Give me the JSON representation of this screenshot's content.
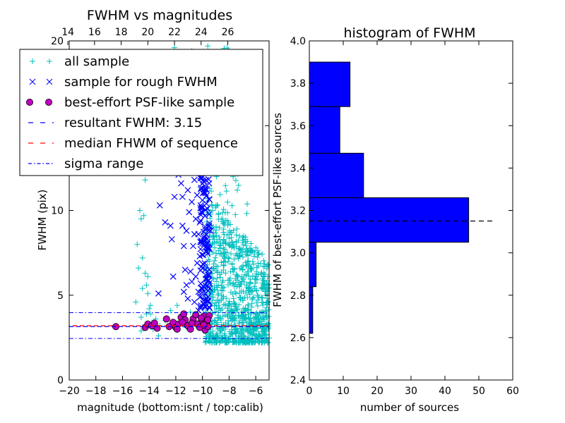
{
  "chart_data": [
    {
      "type": "scatter",
      "title": "FWHM vs magnitudes",
      "xlabel": "magnitude (bottom:isnt / top:calib)",
      "ylabel": "FWHM (pix)",
      "xlim": [
        -20,
        -5
      ],
      "ylim": [
        0,
        20
      ],
      "xticks": [
        -20,
        -18,
        -16,
        -14,
        -12,
        -10,
        -8,
        -6
      ],
      "xtick_labels": [
        "−20",
        "−18",
        "−16",
        "−14",
        "−12",
        "−10",
        "−8",
        "−6"
      ],
      "yticks": [
        0,
        5,
        10,
        15,
        20
      ],
      "ytick_labels": [
        "0",
        "5",
        "10",
        "15",
        "20"
      ],
      "top_axis": {
        "label": "calib",
        "ticks": [
          14,
          16,
          18,
          20,
          22,
          24,
          26
        ],
        "tick_labels": [
          "14",
          "16",
          "18",
          "20",
          "22",
          "24",
          "26"
        ],
        "offset_from_bottom": 34.1
      },
      "legend_placement": "upper-left",
      "legend": [
        {
          "label": "all sample",
          "marker": "+",
          "color": "#00bfbf"
        },
        {
          "label": "sample for rough FWHM",
          "marker": "x",
          "color": "#0000ff"
        },
        {
          "label": "best-effort PSF-like sample",
          "marker": "o",
          "color": "#bf00bf"
        },
        {
          "label": "resultant FWHM: 3.15",
          "linestyle": "dashed",
          "color": "#0000ff"
        },
        {
          "label": "median FHWM of sequence",
          "linestyle": "dashed",
          "color": "#ff0000"
        },
        {
          "label": "sigma range",
          "linestyle": "dashdot",
          "color": "#0000ff"
        }
      ],
      "reference_lines": {
        "resultant_fwhm": 3.15,
        "median_fwhm": 3.2,
        "sigma_range": [
          2.45,
          3.97
        ]
      },
      "series": [
        {
          "name": "all sample",
          "color": "#00bfbf",
          "marker": "+",
          "points": [
            [
              -15.0,
              4.6
            ],
            [
              -14.8,
              6.6
            ],
            [
              -14.9,
              8.0
            ],
            [
              -14.6,
              9.5
            ],
            [
              -14.4,
              9.7
            ],
            [
              -14.5,
              7.2
            ],
            [
              -14.3,
              6.3
            ],
            [
              -14.2,
              5.6
            ],
            [
              -14.1,
              5.1
            ],
            [
              -14.5,
              5.4
            ],
            [
              -14.0,
              4.2
            ],
            [
              -14.2,
              3.9
            ],
            [
              -13.9,
              4.4
            ],
            [
              -14.3,
              11.8
            ],
            [
              -14.7,
              10.0
            ],
            [
              -14.1,
              6.1
            ],
            [
              -13.8,
              3.4
            ],
            [
              -13.7,
              3.0
            ],
            [
              -13.6,
              3.3
            ],
            [
              -14.6,
              3.7
            ],
            [
              -13.5,
              3.6
            ],
            [
              -13.9,
              3.9
            ],
            [
              -13.2,
              3.2
            ],
            [
              -12.8,
              3.5
            ],
            [
              -12.5,
              3.2
            ],
            [
              -12.2,
              3.4
            ],
            [
              -11.8,
              3.3
            ],
            [
              -11.5,
              3.6
            ],
            [
              -11.2,
              3.1
            ],
            [
              -10.8,
              3.4
            ],
            [
              -10.5,
              3.2
            ],
            [
              -10.2,
              3.5
            ],
            [
              -9.9,
              3.3
            ],
            [
              -9.6,
              3.1
            ],
            [
              -14.6,
              2.9
            ],
            [
              -13.3,
              2.6
            ],
            [
              -11.9,
              4.4
            ],
            [
              -12.4,
              4.1
            ],
            [
              -10.9,
              4.0
            ],
            [
              -12.1,
              19.6
            ],
            [
              -10.8,
              19.4
            ],
            [
              -9.6,
              19.7
            ]
          ],
          "dense_cloud": {
            "x_range": [
              -9.8,
              -5.0
            ],
            "y_core": [
              2.2,
              7.0
            ],
            "y_tail_max": 19.6
          }
        },
        {
          "name": "sample for rough FWHM",
          "color": "#0000ff",
          "marker": "x",
          "points": [
            [
              -13.2,
              10.3
            ],
            [
              -13.3,
              5.1
            ],
            [
              -12.8,
              9.3
            ],
            [
              -12.4,
              9.1
            ],
            [
              -12.3,
              8.3
            ],
            [
              -12.2,
              6.1
            ],
            [
              -12.1,
              10.8
            ],
            [
              -11.9,
              14.3
            ],
            [
              -11.8,
              12.1
            ],
            [
              -11.7,
              12.9
            ],
            [
              -11.6,
              11.6
            ],
            [
              -11.5,
              10.8
            ],
            [
              -11.5,
              9.1
            ],
            [
              -11.4,
              7.9
            ],
            [
              -11.4,
              5.2
            ],
            [
              -11.3,
              13.5
            ],
            [
              -11.3,
              6.5
            ],
            [
              -11.2,
              8.8
            ],
            [
              -11.1,
              11.2
            ],
            [
              -11.1,
              4.8
            ],
            [
              -11.0,
              14.8
            ],
            [
              -11.0,
              9.9
            ],
            [
              -10.9,
              6.4
            ],
            [
              -10.9,
              12.4
            ],
            [
              -10.8,
              10.5
            ],
            [
              -10.8,
              5.8
            ],
            [
              -10.7,
              13.1
            ],
            [
              -10.7,
              7.9
            ],
            [
              -10.6,
              11.8
            ],
            [
              -10.6,
              4.6
            ],
            [
              -10.5,
              9.5
            ],
            [
              -10.5,
              6.1
            ],
            [
              -10.4,
              14.6
            ],
            [
              -10.4,
              10.9
            ],
            [
              -10.3,
              8.6
            ],
            [
              -10.3,
              5.2
            ],
            [
              -10.2,
              12.6
            ],
            [
              -10.2,
              7.3
            ],
            [
              -10.1,
              9.9
            ],
            [
              -10.1,
              4.4
            ],
            [
              -10.0,
              13.8
            ],
            [
              -10.0,
              6.6
            ],
            [
              -9.9,
              11.1
            ],
            [
              -9.9,
              8.2
            ],
            [
              -9.8,
              14.2
            ],
            [
              -9.8,
              5.6
            ],
            [
              -9.7,
              10.4
            ],
            [
              -9.7,
              7.6
            ],
            [
              -9.6,
              12.2
            ],
            [
              -9.6,
              4.9
            ],
            [
              -9.5,
              9.1
            ],
            [
              -9.5,
              6.2
            ],
            [
              -9.4,
              13.4
            ],
            [
              -9.4,
              8.8
            ],
            [
              -9.5,
              11.6
            ],
            [
              -9.6,
              15.0
            ],
            [
              -9.8,
              8.9
            ],
            [
              -10.0,
              10.6
            ],
            [
              -10.2,
              13.0
            ],
            [
              -10.4,
              6.9
            ],
            [
              -10.6,
              8.6
            ],
            [
              -10.8,
              14.0
            ],
            [
              -11.2,
              5.6
            ],
            [
              -10.3,
              4.1
            ],
            [
              -9.9,
              4.5
            ],
            [
              -9.5,
              4.3
            ]
          ]
        },
        {
          "name": "best-effort PSF-like sample",
          "color": "#bf00bf",
          "marker": "o",
          "points": [
            [
              -16.5,
              3.15
            ],
            [
              -14.3,
              3.1
            ],
            [
              -14.1,
              3.3
            ],
            [
              -13.8,
              3.2
            ],
            [
              -13.6,
              3.35
            ],
            [
              -13.4,
              3.05
            ],
            [
              -12.5,
              3.15
            ],
            [
              -12.2,
              3.4
            ],
            [
              -12.0,
              3.1
            ],
            [
              -11.8,
              3.3
            ],
            [
              -11.6,
              3.7
            ],
            [
              -11.4,
              3.9
            ],
            [
              -11.3,
              3.55
            ],
            [
              -11.1,
              3.2
            ],
            [
              -10.9,
              3.0
            ],
            [
              -10.7,
              3.6
            ],
            [
              -10.5,
              3.85
            ],
            [
              -10.4,
              3.3
            ],
            [
              -10.2,
              3.1
            ],
            [
              -10.0,
              3.5
            ],
            [
              -9.9,
              3.75
            ],
            [
              -9.8,
              2.95
            ],
            [
              -9.7,
              3.4
            ],
            [
              -9.6,
              3.15
            ],
            [
              -9.5,
              3.8
            ],
            [
              -12.7,
              3.6
            ],
            [
              -11.9,
              3.0
            ],
            [
              -11.5,
              3.4
            ],
            [
              -10.8,
              3.35
            ],
            [
              -10.1,
              3.65
            ],
            [
              -9.9,
              3.25
            ],
            [
              -9.6,
              3.55
            ]
          ]
        }
      ]
    },
    {
      "type": "bar",
      "orientation": "horizontal",
      "title": "histogram of FWHM",
      "xlabel": "number of sources",
      "ylabel": "FWHM of best-effort PSF-like sources",
      "xlim": [
        0,
        60
      ],
      "ylim": [
        2.4,
        4.0
      ],
      "xticks": [
        0,
        10,
        20,
        30,
        40,
        50,
        60
      ],
      "xtick_labels": [
        "0",
        "10",
        "20",
        "30",
        "40",
        "50",
        "60"
      ],
      "yticks": [
        2.4,
        2.6,
        2.8,
        3.0,
        3.2,
        3.4,
        3.6,
        3.8,
        4.0
      ],
      "ytick_labels": [
        "2.4",
        "2.6",
        "2.8",
        "3.0",
        "3.2",
        "3.4",
        "3.6",
        "3.8",
        "4.0"
      ],
      "color": "#0000ff",
      "bins": [
        {
          "y0": 2.62,
          "y1": 2.84,
          "count": 1
        },
        {
          "y0": 2.84,
          "y1": 3.05,
          "count": 2
        },
        {
          "y0": 3.05,
          "y1": 3.26,
          "count": 47
        },
        {
          "y0": 3.26,
          "y1": 3.47,
          "count": 16
        },
        {
          "y0": 3.47,
          "y1": 3.69,
          "count": 9
        },
        {
          "y0": 3.69,
          "y1": 3.9,
          "count": 12
        }
      ],
      "reference_line": {
        "y": 3.15,
        "x_range": [
          0,
          55
        ],
        "linestyle": "dashed",
        "color": "#000000"
      }
    }
  ]
}
